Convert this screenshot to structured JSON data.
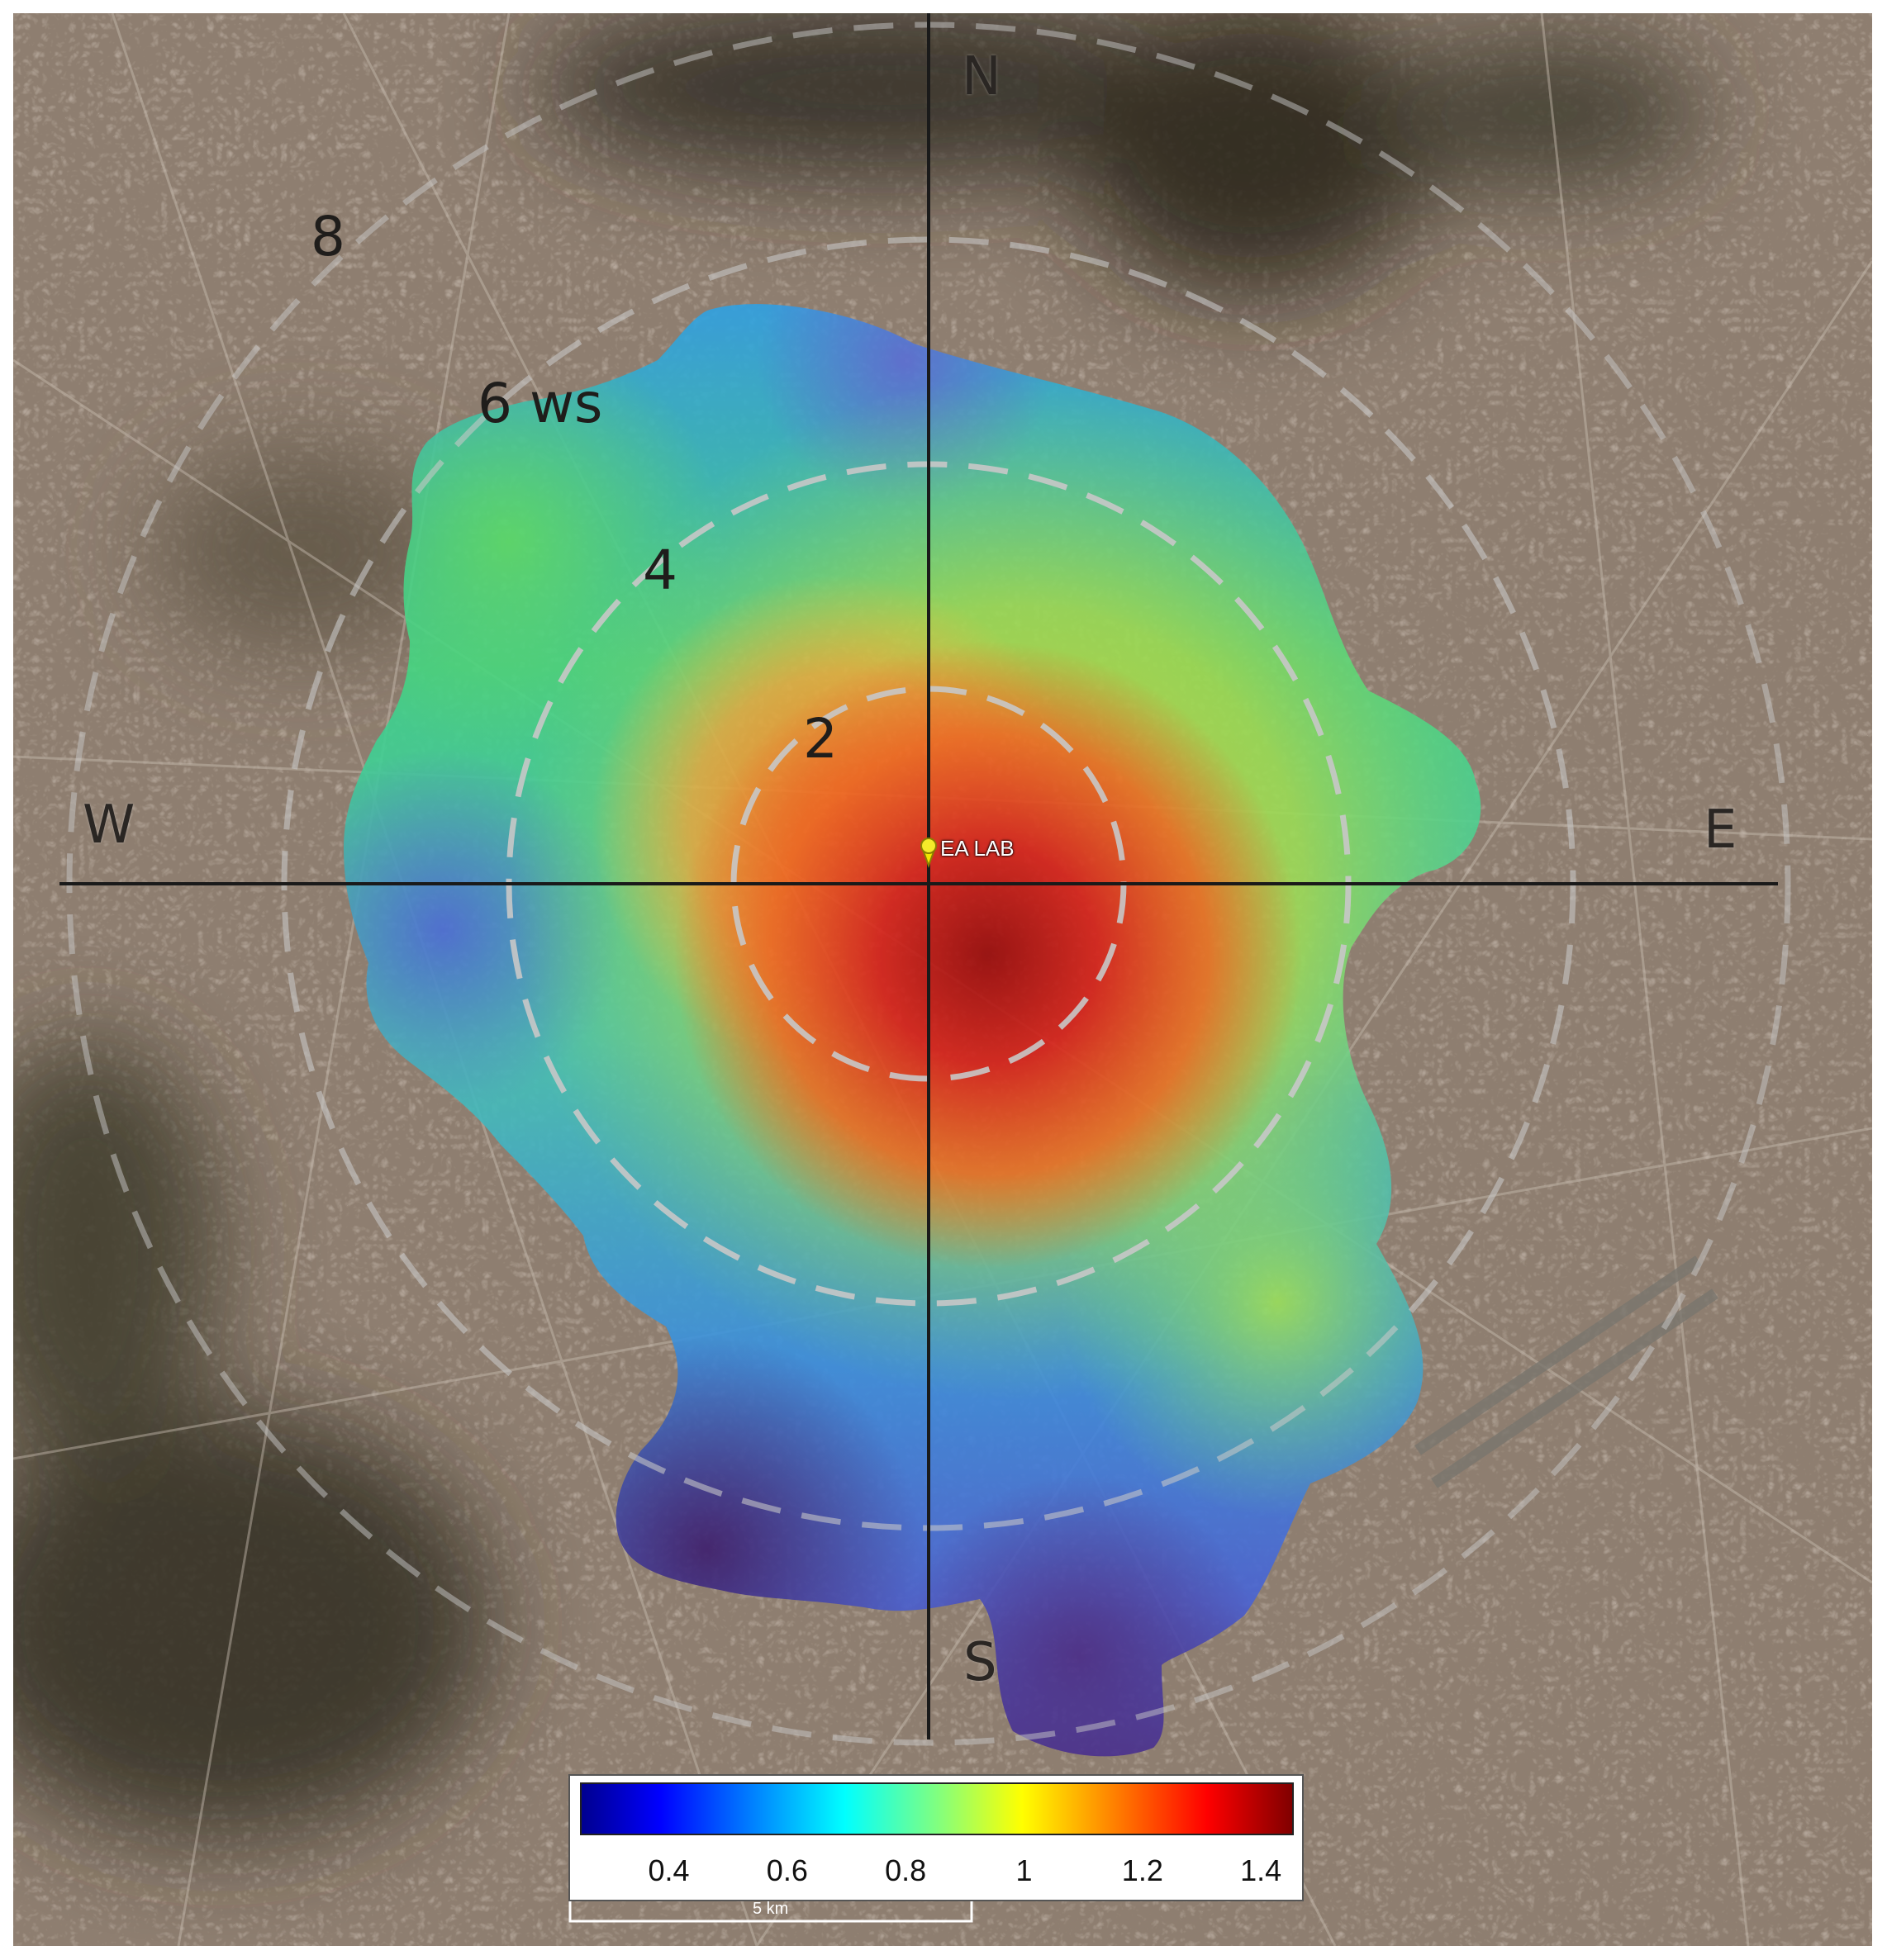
{
  "map": {
    "compass": {
      "north": "N",
      "east": "E",
      "south": "S",
      "west": "W"
    },
    "rings": [
      {
        "label": "2",
        "distance": 2
      },
      {
        "label": "4",
        "distance": 4
      },
      {
        "label": "6 ws",
        "distance": 6
      },
      {
        "label": "8",
        "distance": 8
      }
    ],
    "site_marker": {
      "label": "EA LAB",
      "icon": "pushpin-icon",
      "color": "#f2e600"
    },
    "colorbar": {
      "ticks": [
        "0.4",
        "0.6",
        "0.8",
        "1",
        "1.2",
        "1.4"
      ],
      "range": [
        0.25,
        1.45
      ],
      "colormap": "jet"
    },
    "scale_bar": {
      "label": "5 km"
    }
  }
}
